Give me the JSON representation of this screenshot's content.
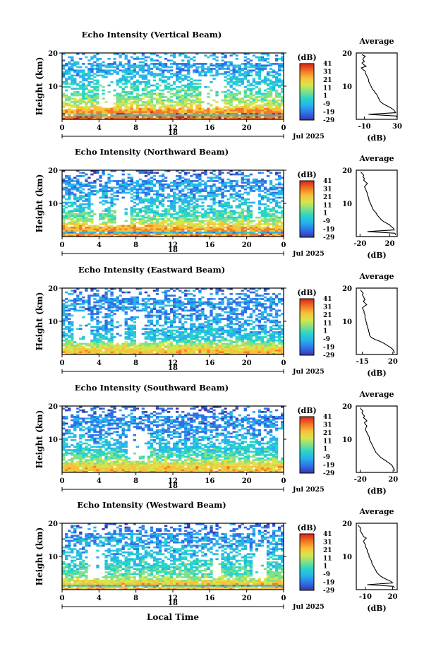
{
  "figure": {
    "xlabel": "Local Time",
    "month_label": "Jul 2025",
    "colorbar_unit": "(dB)",
    "colorbar_ticks": [
      "41",
      "31",
      "21",
      "11",
      "1",
      "-9",
      "-19",
      "-29"
    ],
    "average_title": "Average",
    "average_xlabel": "(dB)",
    "ylabel": "Height (km)"
  },
  "chart_data": [
    {
      "type": "heatmap",
      "title": "Echo Intensity (Vertical Beam)",
      "xlabel": "",
      "ylabel": "Height (km)",
      "x_ticks": [
        "0",
        "4",
        "8",
        "12",
        "16",
        "20",
        "0"
      ],
      "x_range": [
        0,
        24
      ],
      "y_ticks": [
        "20",
        "10"
      ],
      "y_range": [
        0,
        20
      ],
      "date_day": "18",
      "colorbar": {
        "label": "(dB)",
        "range": [
          -29,
          41
        ],
        "ticks": [
          41,
          31,
          21,
          11,
          1,
          -9,
          -19,
          -29
        ]
      },
      "average_profile": {
        "title": "Average",
        "xlabel": "(dB)",
        "x_ticks": [
          "-10",
          "30"
        ],
        "x_range": [
          -20,
          30
        ],
        "height_km": [
          0.5,
          1,
          1.5,
          2,
          2.5,
          3,
          3.5,
          4,
          4.5,
          5,
          5.5,
          6,
          6.5,
          7,
          7.5,
          8,
          8.5,
          9,
          9.5,
          10,
          10.5,
          11,
          11.5,
          12,
          12.5,
          13,
          13.5,
          14,
          14.5,
          15,
          15.5,
          16,
          16.5,
          17,
          17.5,
          18,
          18.5,
          19,
          19.5
        ],
        "db": [
          30,
          29,
          -5,
          28,
          27,
          25,
          22,
          18,
          14,
          11,
          9,
          8,
          7,
          6,
          5,
          3,
          2,
          0,
          -1,
          -2,
          -3,
          -4,
          -5,
          -5,
          -6,
          -7,
          -8,
          -9,
          -9,
          -12,
          -14,
          -8,
          -11,
          -13,
          -10,
          -12,
          -11,
          -9,
          -13
        ]
      }
    },
    {
      "type": "heatmap",
      "title": "Echo Intensity (Northward Beam)",
      "xlabel": "",
      "ylabel": "Height (km)",
      "x_ticks": [
        "0",
        "4",
        "8",
        "12",
        "16",
        "20",
        "0"
      ],
      "x_range": [
        0,
        24
      ],
      "y_ticks": [
        "20",
        "10"
      ],
      "y_range": [
        0,
        20
      ],
      "date_day": "18",
      "colorbar": {
        "label": "(dB)",
        "range": [
          -29,
          41
        ],
        "ticks": [
          41,
          31,
          21,
          11,
          1,
          -9,
          -19,
          -29
        ]
      },
      "average_profile": {
        "title": "Average",
        "xlabel": "(dB)",
        "x_ticks": [
          "-20",
          "20"
        ],
        "x_range": [
          -25,
          30
        ],
        "height_km": [
          0.5,
          1,
          1.5,
          2,
          2.5,
          3,
          3.5,
          4,
          4.5,
          5,
          5.5,
          6,
          6.5,
          7,
          7.5,
          8,
          8.5,
          9,
          9.5,
          10,
          10.5,
          11,
          11.5,
          12,
          12.5,
          13,
          13.5,
          14,
          14.5,
          15,
          15.5,
          16,
          16.5,
          17,
          17.5,
          18,
          18.5,
          19,
          19.5
        ],
        "db": [
          28,
          27,
          -10,
          26,
          25,
          22,
          20,
          16,
          12,
          9,
          7,
          5,
          3,
          2,
          0,
          -2,
          -3,
          -4,
          -5,
          -6,
          -7,
          -8,
          -8,
          -9,
          -10,
          -10,
          -11,
          -12,
          -13,
          -14,
          -12,
          -10,
          -13,
          -15,
          -14,
          -16,
          -15,
          -17,
          -19
        ]
      }
    },
    {
      "type": "heatmap",
      "title": "Echo Intensity (Eastward Beam)",
      "xlabel": "",
      "ylabel": "Height (km)",
      "x_ticks": [
        "0",
        "4",
        "8",
        "12",
        "16",
        "20",
        "0"
      ],
      "x_range": [
        0,
        24
      ],
      "y_ticks": [
        "20",
        "10"
      ],
      "y_range": [
        0,
        20
      ],
      "date_day": "18",
      "colorbar": {
        "label": "(dB)",
        "range": [
          -29,
          41
        ],
        "ticks": [
          41,
          31,
          21,
          11,
          1,
          -9,
          -19,
          -29
        ]
      },
      "average_profile": {
        "title": "Average",
        "xlabel": "(dB)",
        "x_ticks": [
          "-15",
          "20"
        ],
        "x_range": [
          -22,
          25
        ],
        "height_km": [
          0.5,
          1,
          1.5,
          2,
          2.5,
          3,
          3.5,
          4,
          4.5,
          5,
          5.5,
          6,
          6.5,
          7,
          7.5,
          8,
          8.5,
          9,
          9.5,
          10,
          10.5,
          11,
          11.5,
          12,
          12.5,
          13,
          13.5,
          14,
          14.5,
          15,
          15.5,
          16,
          16.5,
          17,
          17.5,
          18,
          18.5,
          19,
          19.5
        ],
        "db": [
          22,
          21,
          20,
          18,
          15,
          12,
          9,
          5,
          0,
          -4,
          -6,
          -7,
          -7,
          -8,
          -8,
          -9,
          -9,
          -10,
          -10,
          -11,
          -11,
          -12,
          -12,
          -12,
          -13,
          -13,
          -14,
          -15,
          -13,
          -10,
          -12,
          -14,
          -12,
          -13,
          -14,
          -15,
          -14,
          -16,
          -17
        ]
      }
    },
    {
      "type": "heatmap",
      "title": "Echo Intensity (Southward Beam)",
      "xlabel": "",
      "ylabel": "Height (km)",
      "x_ticks": [
        "0",
        "4",
        "8",
        "12",
        "16",
        "20",
        "0"
      ],
      "x_range": [
        0,
        24
      ],
      "y_ticks": [
        "20",
        "10"
      ],
      "y_range": [
        0,
        20
      ],
      "date_day": "18",
      "colorbar": {
        "label": "(dB)",
        "range": [
          -29,
          41
        ],
        "ticks": [
          41,
          31,
          21,
          11,
          1,
          -9,
          -19,
          -29
        ]
      },
      "average_profile": {
        "title": "Average",
        "xlabel": "(dB)",
        "x_ticks": [
          "-20",
          "20"
        ],
        "x_range": [
          -25,
          25
        ],
        "height_km": [
          0.5,
          1,
          1.5,
          2,
          2.5,
          3,
          3.5,
          4,
          4.5,
          5,
          5.5,
          6,
          6.5,
          7,
          7.5,
          8,
          8.5,
          9,
          9.5,
          10,
          10.5,
          11,
          11.5,
          12,
          12.5,
          13,
          13.5,
          14,
          14.5,
          15,
          15.5,
          16,
          16.5,
          17,
          17.5,
          18,
          18.5,
          19,
          19.5
        ],
        "db": [
          22,
          21,
          20,
          19,
          17,
          14,
          11,
          8,
          5,
          3,
          1,
          -1,
          -2,
          -3,
          -4,
          -5,
          -6,
          -7,
          -8,
          -9,
          -9,
          -10,
          -11,
          -12,
          -13,
          -14,
          -13,
          -12,
          -14,
          -15,
          -12,
          -14,
          -16,
          -15,
          -17,
          -18,
          -17,
          -19,
          -20
        ]
      }
    },
    {
      "type": "heatmap",
      "title": "Echo Intensity (Westward Beam)",
      "xlabel": "Local Time",
      "ylabel": "Height (km)",
      "x_ticks": [
        "0",
        "4",
        "8",
        "12",
        "16",
        "20",
        "0"
      ],
      "x_range": [
        0,
        24
      ],
      "y_ticks": [
        "20",
        "10"
      ],
      "y_range": [
        0,
        20
      ],
      "date_day": "18",
      "colorbar": {
        "label": "(dB)",
        "range": [
          -29,
          41
        ],
        "ticks": [
          41,
          31,
          21,
          11,
          1,
          -9,
          -19,
          -29
        ]
      },
      "average_profile": {
        "title": "Average",
        "xlabel": "(dB)",
        "x_ticks": [
          "-10",
          "20"
        ],
        "x_range": [
          -20,
          25
        ],
        "height_km": [
          0.5,
          1,
          1.5,
          2,
          2.5,
          3,
          3.5,
          4,
          4.5,
          5,
          5.5,
          6,
          6.5,
          7,
          7.5,
          8,
          8.5,
          9,
          9.5,
          10,
          10.5,
          11,
          11.5,
          12,
          12.5,
          13,
          13.5,
          14,
          14.5,
          15,
          15.5,
          16,
          16.5,
          17,
          17.5,
          18,
          18.5,
          19,
          19.5
        ],
        "db": [
          22,
          21,
          -8,
          20,
          18,
          14,
          10,
          7,
          5,
          3,
          2,
          1,
          0,
          -1,
          -2,
          -3,
          -3,
          -4,
          -5,
          -6,
          -6,
          -7,
          -8,
          -8,
          -9,
          -10,
          -10,
          -11,
          -12,
          -11,
          -9,
          -12,
          -13,
          -14,
          -15,
          -16,
          -15,
          -17,
          -18
        ]
      }
    }
  ]
}
